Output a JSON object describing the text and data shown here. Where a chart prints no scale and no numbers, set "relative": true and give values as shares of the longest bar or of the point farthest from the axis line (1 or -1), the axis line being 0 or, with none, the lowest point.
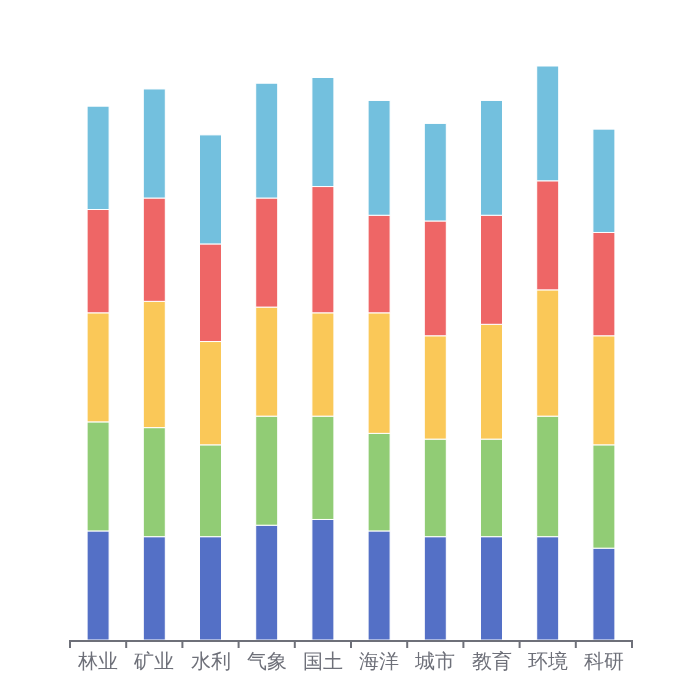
{
  "chart_data": {
    "type": "bar",
    "stacked": true,
    "relative": true,
    "categories": [
      "林业",
      "矿业",
      "水利",
      "气象",
      "国土",
      "海洋",
      "城市",
      "教育",
      "环境",
      "科研"
    ],
    "series": [
      {
        "color": "#5470c6",
        "values": [
          0.19,
          0.18,
          0.18,
          0.2,
          0.21,
          0.19,
          0.18,
          0.18,
          0.18,
          0.16
        ]
      },
      {
        "color": "#91cc75",
        "values": [
          0.19,
          0.19,
          0.16,
          0.19,
          0.18,
          0.17,
          0.17,
          0.17,
          0.21,
          0.18
        ]
      },
      {
        "color": "#fac858",
        "values": [
          0.19,
          0.22,
          0.18,
          0.19,
          0.18,
          0.21,
          0.18,
          0.2,
          0.22,
          0.19
        ]
      },
      {
        "color": "#ee6666",
        "values": [
          0.18,
          0.18,
          0.17,
          0.19,
          0.22,
          0.17,
          0.2,
          0.19,
          0.19,
          0.18
        ]
      },
      {
        "color": "#73c0de",
        "values": [
          0.18,
          0.19,
          0.19,
          0.2,
          0.19,
          0.2,
          0.17,
          0.2,
          0.2,
          0.18
        ]
      }
    ]
  }
}
